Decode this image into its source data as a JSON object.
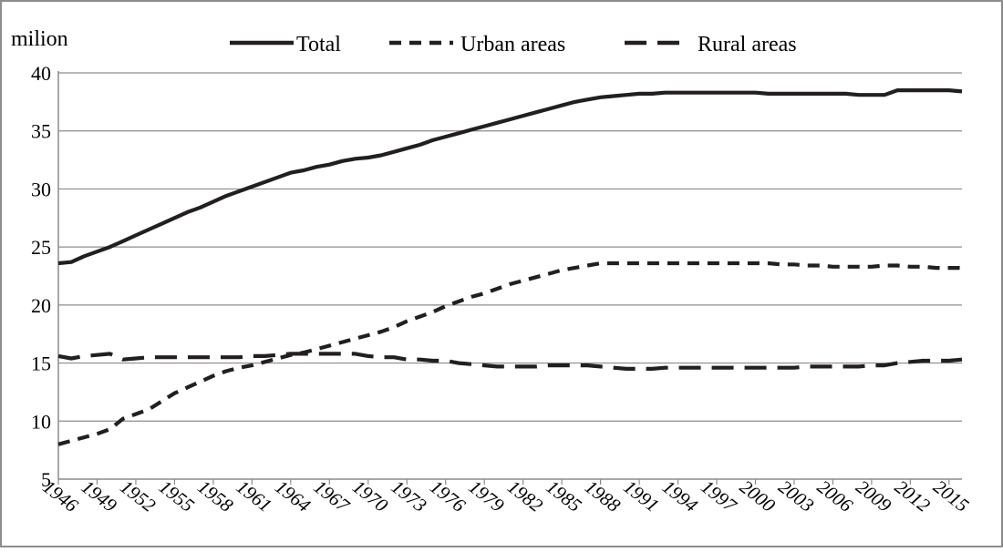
{
  "chart_data": {
    "type": "line",
    "ylabel": "milion",
    "ylim": [
      5,
      40
    ],
    "yticks": [
      5,
      10,
      15,
      20,
      25,
      30,
      35,
      40
    ],
    "xlim": [
      1946,
      2016
    ],
    "xticks": [
      1946,
      1949,
      1952,
      1955,
      1958,
      1961,
      1964,
      1967,
      1970,
      1973,
      1976,
      1979,
      1982,
      1985,
      1988,
      1991,
      1994,
      1997,
      2000,
      2003,
      2006,
      2009,
      2012,
      2015
    ],
    "x_tick_labels": [
      "1946",
      "1949",
      "1952",
      "1955",
      "1958",
      "1961",
      "1964",
      "1967",
      "1970",
      "1973",
      "1976",
      "1979",
      "1982",
      "1985",
      "1988",
      "1991",
      "1994",
      "1997",
      "2000",
      "2003",
      "2006",
      "2009",
      "2012",
      "2015"
    ],
    "grid": "horizontal",
    "legend_position": "top",
    "series": [
      {
        "name": "Total",
        "style": "solid",
        "x": [
          1946,
          1947,
          1948,
          1949,
          1950,
          1951,
          1952,
          1953,
          1954,
          1955,
          1956,
          1957,
          1958,
          1959,
          1960,
          1961,
          1962,
          1963,
          1964,
          1965,
          1966,
          1967,
          1968,
          1969,
          1970,
          1971,
          1972,
          1973,
          1974,
          1975,
          1976,
          1977,
          1978,
          1979,
          1980,
          1981,
          1982,
          1983,
          1984,
          1985,
          1986,
          1987,
          1988,
          1989,
          1990,
          1991,
          1992,
          1993,
          1994,
          1995,
          1996,
          1997,
          1998,
          1999,
          2000,
          2001,
          2002,
          2003,
          2004,
          2005,
          2006,
          2007,
          2008,
          2009,
          2010,
          2011,
          2012,
          2013,
          2014,
          2015,
          2016
        ],
        "values": [
          23.6,
          23.7,
          24.2,
          24.6,
          25.0,
          25.5,
          26.0,
          26.5,
          27.0,
          27.5,
          28.0,
          28.4,
          28.9,
          29.4,
          29.8,
          30.2,
          30.6,
          31.0,
          31.4,
          31.6,
          31.9,
          32.1,
          32.4,
          32.6,
          32.7,
          32.9,
          33.2,
          33.5,
          33.8,
          34.2,
          34.5,
          34.8,
          35.1,
          35.4,
          35.7,
          36.0,
          36.3,
          36.6,
          36.9,
          37.2,
          37.5,
          37.7,
          37.9,
          38.0,
          38.1,
          38.2,
          38.2,
          38.3,
          38.3,
          38.3,
          38.3,
          38.3,
          38.3,
          38.3,
          38.3,
          38.2,
          38.2,
          38.2,
          38.2,
          38.2,
          38.2,
          38.2,
          38.1,
          38.1,
          38.1,
          38.5,
          38.5,
          38.5,
          38.5,
          38.5,
          38.4
        ]
      },
      {
        "name": "Urban areas",
        "style": "short-dash",
        "x": [
          1946,
          1947,
          1948,
          1949,
          1950,
          1951,
          1952,
          1953,
          1954,
          1955,
          1956,
          1957,
          1958,
          1959,
          1960,
          1961,
          1962,
          1963,
          1964,
          1965,
          1966,
          1967,
          1968,
          1969,
          1970,
          1971,
          1972,
          1973,
          1974,
          1975,
          1976,
          1977,
          1978,
          1979,
          1980,
          1981,
          1982,
          1983,
          1984,
          1985,
          1986,
          1987,
          1988,
          1989,
          1990,
          1991,
          1992,
          1993,
          1994,
          1995,
          1996,
          1997,
          1998,
          1999,
          2000,
          2001,
          2002,
          2003,
          2004,
          2005,
          2006,
          2007,
          2008,
          2009,
          2010,
          2011,
          2012,
          2013,
          2014,
          2015,
          2016
        ],
        "values": [
          8.0,
          8.3,
          8.6,
          8.9,
          9.3,
          10.2,
          10.6,
          11.0,
          11.7,
          12.4,
          12.9,
          13.4,
          13.9,
          14.3,
          14.6,
          14.8,
          15.1,
          15.4,
          15.7,
          15.9,
          16.2,
          16.5,
          16.8,
          17.1,
          17.4,
          17.7,
          18.1,
          18.6,
          19.0,
          19.4,
          19.9,
          20.3,
          20.7,
          21.0,
          21.4,
          21.8,
          22.1,
          22.4,
          22.7,
          23.0,
          23.2,
          23.4,
          23.6,
          23.6,
          23.6,
          23.6,
          23.6,
          23.6,
          23.6,
          23.6,
          23.6,
          23.6,
          23.6,
          23.6,
          23.6,
          23.6,
          23.5,
          23.5,
          23.4,
          23.4,
          23.3,
          23.3,
          23.3,
          23.3,
          23.4,
          23.4,
          23.3,
          23.3,
          23.2,
          23.2,
          23.2
        ]
      },
      {
        "name": "Rural areas",
        "style": "long-dash",
        "x": [
          1946,
          1947,
          1948,
          1949,
          1950,
          1951,
          1952,
          1953,
          1954,
          1955,
          1956,
          1957,
          1958,
          1959,
          1960,
          1961,
          1962,
          1963,
          1964,
          1965,
          1966,
          1967,
          1968,
          1969,
          1970,
          1971,
          1972,
          1973,
          1974,
          1975,
          1976,
          1977,
          1978,
          1979,
          1980,
          1981,
          1982,
          1983,
          1984,
          1985,
          1986,
          1987,
          1988,
          1989,
          1990,
          1991,
          1992,
          1993,
          1994,
          1995,
          1996,
          1997,
          1998,
          1999,
          2000,
          2001,
          2002,
          2003,
          2004,
          2005,
          2006,
          2007,
          2008,
          2009,
          2010,
          2011,
          2012,
          2013,
          2014,
          2015,
          2016
        ],
        "values": [
          15.6,
          15.4,
          15.6,
          15.7,
          15.8,
          15.3,
          15.4,
          15.5,
          15.5,
          15.5,
          15.5,
          15.5,
          15.5,
          15.5,
          15.5,
          15.6,
          15.6,
          15.7,
          15.8,
          15.8,
          15.8,
          15.8,
          15.8,
          15.8,
          15.6,
          15.5,
          15.5,
          15.3,
          15.3,
          15.2,
          15.2,
          15.0,
          14.9,
          14.8,
          14.7,
          14.7,
          14.7,
          14.7,
          14.8,
          14.8,
          14.8,
          14.8,
          14.7,
          14.6,
          14.5,
          14.5,
          14.5,
          14.6,
          14.6,
          14.6,
          14.6,
          14.6,
          14.6,
          14.6,
          14.6,
          14.6,
          14.6,
          14.6,
          14.7,
          14.7,
          14.7,
          14.7,
          14.7,
          14.8,
          14.8,
          15.0,
          15.1,
          15.2,
          15.2,
          15.2,
          15.3
        ]
      }
    ]
  }
}
